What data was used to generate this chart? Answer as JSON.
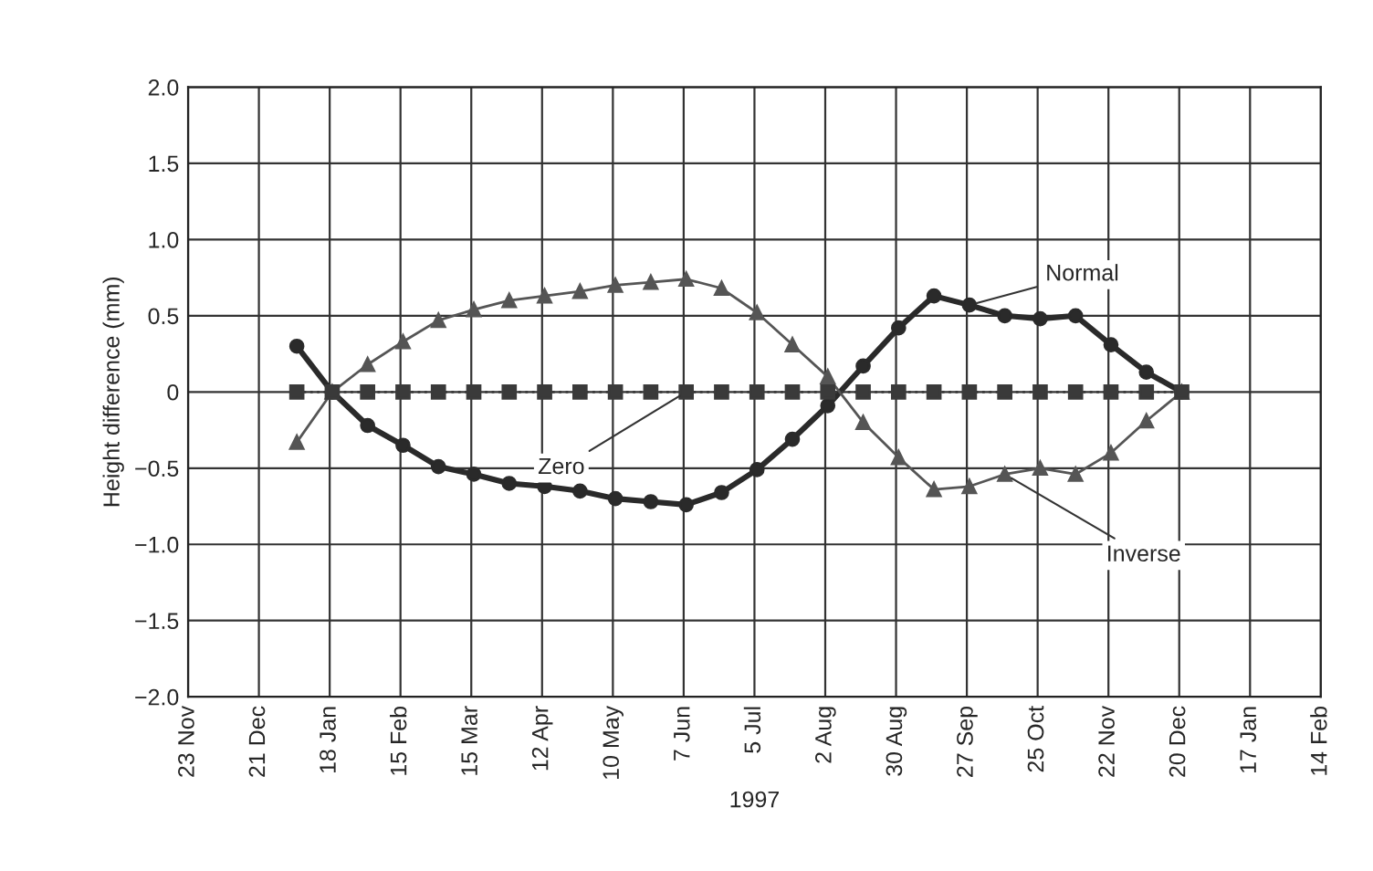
{
  "chart_data": {
    "type": "line",
    "xlabel": "1997",
    "ylabel": "Height difference (mm)",
    "x": [
      "1997-01-05",
      "1997-01-19",
      "1997-02-02",
      "1997-02-16",
      "1997-03-02",
      "1997-03-16",
      "1997-03-30",
      "1997-04-13",
      "1997-04-27",
      "1997-05-11",
      "1997-05-25",
      "1997-06-08",
      "1997-06-22",
      "1997-07-06",
      "1997-07-20",
      "1997-08-03",
      "1997-08-17",
      "1997-08-31",
      "1997-09-14",
      "1997-09-28",
      "1997-10-12",
      "1997-10-26",
      "1997-11-09",
      "1997-11-23",
      "1997-12-07",
      "1997-12-21"
    ],
    "series": [
      {
        "name": "Normal",
        "color": "#2a2a2a",
        "marker": "circle",
        "line_style": "solid",
        "values": [
          0.3,
          0,
          -0.22,
          -0.35,
          -0.49,
          -0.54,
          -0.6,
          -0.62,
          -0.65,
          -0.7,
          -0.72,
          -0.74,
          -0.66,
          -0.51,
          -0.31,
          -0.09,
          0.17,
          0.42,
          0.63,
          0.57,
          0.5,
          0.48,
          0.5,
          0.31,
          0.13,
          0
        ]
      },
      {
        "name": "Inverse",
        "color": "#555555",
        "marker": "triangle",
        "line_style": "solid",
        "values": [
          -0.33,
          0,
          0.18,
          0.33,
          0.47,
          0.54,
          0.6,
          0.63,
          0.66,
          0.7,
          0.72,
          0.74,
          0.68,
          0.52,
          0.31,
          0.1,
          -0.2,
          -0.43,
          -0.64,
          -0.62,
          -0.54,
          -0.5,
          -0.54,
          -0.4,
          -0.19,
          0
        ]
      },
      {
        "name": "Zero",
        "color": "#3a3a3a",
        "marker": "square",
        "line_style": "dotted",
        "values": [
          0,
          0,
          0,
          0,
          0,
          0,
          0,
          0,
          0,
          0,
          0,
          0,
          0,
          0,
          0,
          0,
          0,
          0,
          0,
          0,
          0,
          0,
          0,
          0,
          0,
          0
        ]
      }
    ],
    "xlim": [
      "1996-11-23",
      "1998-02-14"
    ],
    "xticks": [
      {
        "value": "1996-11-23",
        "label": "23 Nov"
      },
      {
        "value": "1996-12-21",
        "label": "21 Dec"
      },
      {
        "value": "1997-01-18",
        "label": "18 Jan"
      },
      {
        "value": "1997-02-15",
        "label": "15 Feb"
      },
      {
        "value": "1997-03-15",
        "label": "15 Mar"
      },
      {
        "value": "1997-04-12",
        "label": "12 Apr"
      },
      {
        "value": "1997-05-10",
        "label": "10 May"
      },
      {
        "value": "1997-06-07",
        "label": "7 Jun"
      },
      {
        "value": "1997-07-05",
        "label": "5 Jul"
      },
      {
        "value": "1997-08-02",
        "label": "2 Aug"
      },
      {
        "value": "1997-08-30",
        "label": "30 Aug"
      },
      {
        "value": "1997-09-27",
        "label": "27 Sep"
      },
      {
        "value": "1997-10-25",
        "label": "25 Oct"
      },
      {
        "value": "1997-11-22",
        "label": "22 Nov"
      },
      {
        "value": "1997-12-20",
        "label": "20 Dec"
      },
      {
        "value": "1998-01-17",
        "label": "17 Jan"
      },
      {
        "value": "1998-02-14",
        "label": "14 Feb"
      }
    ],
    "ylim": [
      -2.0,
      2.0
    ],
    "yticks": [
      {
        "value": 2.0,
        "label": "2.0"
      },
      {
        "value": 1.5,
        "label": "1.5"
      },
      {
        "value": 1.0,
        "label": "1.0"
      },
      {
        "value": 0.5,
        "label": "0.5"
      },
      0,
      {
        "value": -0.5,
        "label": "−0.5"
      },
      {
        "value": -1.0,
        "label": "−1.0"
      },
      {
        "value": -1.5,
        "label": "−1.5"
      },
      {
        "value": -2.0,
        "label": "−2.0"
      }
    ],
    "grid": true,
    "legend": false
  }
}
